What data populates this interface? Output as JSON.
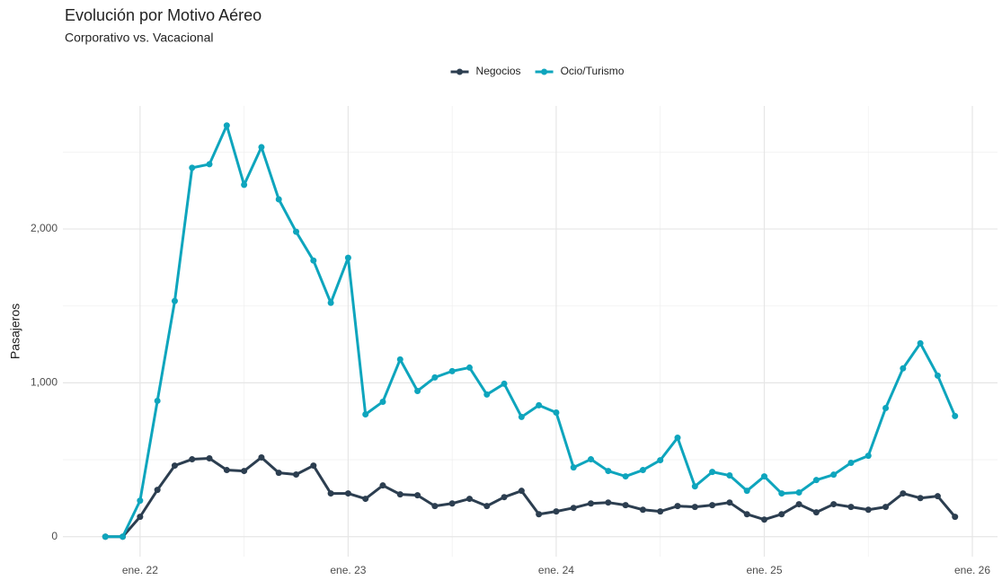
{
  "chart_data": {
    "type": "line",
    "title": "Evolución por Motivo Aéreo",
    "subtitle": "Corporativo vs. Vacacional",
    "y_label": "Pasajeros",
    "x": [
      "2021-11",
      "2021-12",
      "2022-01",
      "2022-02",
      "2022-03",
      "2022-04",
      "2022-05",
      "2022-06",
      "2022-07",
      "2022-08",
      "2022-09",
      "2022-10",
      "2022-11",
      "2022-12",
      "2023-01",
      "2023-02",
      "2023-03",
      "2023-04",
      "2023-05",
      "2023-06",
      "2023-07",
      "2023-08",
      "2023-09",
      "2023-10",
      "2023-11",
      "2023-12",
      "2024-01",
      "2024-02",
      "2024-03",
      "2024-04",
      "2024-05",
      "2024-06",
      "2024-07",
      "2024-08",
      "2024-09",
      "2024-10",
      "2024-11",
      "2024-12",
      "2025-01",
      "2025-02",
      "2025-03",
      "2025-04",
      "2025-05",
      "2025-06",
      "2025-07",
      "2025-08",
      "2025-09",
      "2025-10",
      "2025-11",
      "2025-12"
    ],
    "series": [
      {
        "name": "Negocios",
        "color": "#2c3e50",
        "values": [
          0,
          0,
          129,
          304,
          462,
          503,
          509,
          433,
          427,
          515,
          415,
          404,
          462,
          281,
          281,
          246,
          333,
          275,
          269,
          199,
          216,
          246,
          199,
          257,
          298,
          146,
          164,
          187,
          216,
          222,
          205,
          175,
          164,
          199,
          193,
          205,
          222,
          146,
          111,
          146,
          211,
          158,
          211,
          193,
          175,
          193,
          281,
          251,
          263,
          129
        ]
      },
      {
        "name": "Ocio/Turismo",
        "color": "#0ea5bd",
        "values": [
          0,
          0,
          234,
          883,
          1532,
          2398,
          2421,
          2673,
          2287,
          2532,
          2193,
          1982,
          1795,
          1520,
          1813,
          795,
          877,
          1152,
          947,
          1035,
          1076,
          1099,
          924,
          994,
          778,
          854,
          807,
          450,
          503,
          427,
          392,
          433,
          497,
          643,
          327,
          421,
          398,
          298,
          392,
          281,
          287,
          368,
          403,
          480,
          526,
          836,
          1094,
          1257,
          1047,
          784
        ]
      }
    ],
    "xticks": [
      {
        "value": "2022-01",
        "label": "ene. 22"
      },
      {
        "value": "2023-01",
        "label": "ene. 23"
      },
      {
        "value": "2024-01",
        "label": "ene. 24"
      },
      {
        "value": "2025-01",
        "label": "ene. 25"
      },
      {
        "value": "2026-01",
        "label": "ene. 26"
      }
    ],
    "xminor": [
      "2022-07",
      "2023-07",
      "2024-07",
      "2025-07"
    ],
    "ylim": [
      -130,
      2800
    ],
    "yticks": [
      0,
      {
        "value": 1000,
        "label": "1,000"
      },
      {
        "value": 2000,
        "label": "2,000"
      }
    ],
    "yminor": [
      500,
      1500,
      2500
    ],
    "grid": true,
    "legend": "top"
  }
}
